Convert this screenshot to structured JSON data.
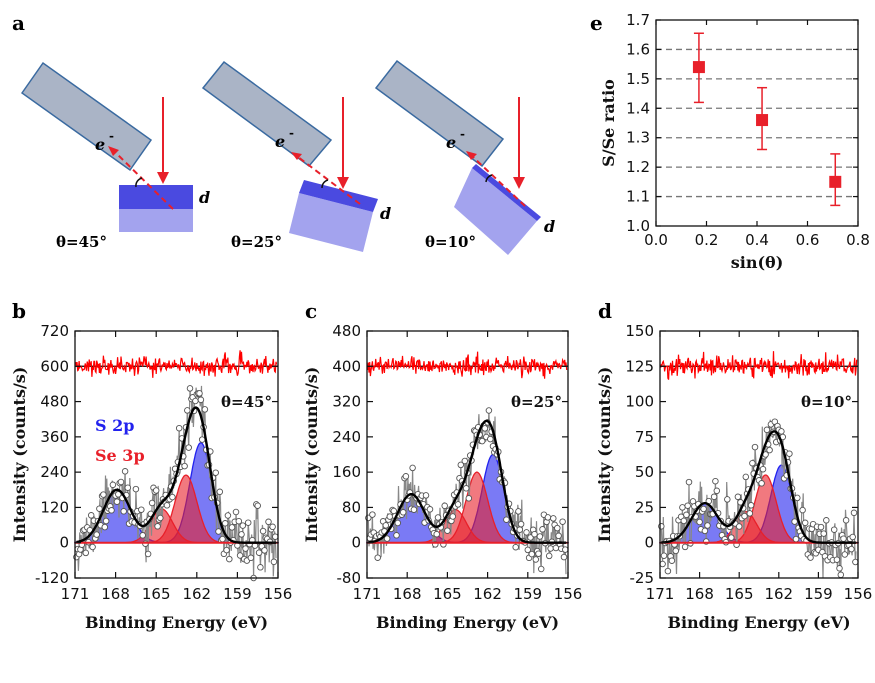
{
  "panels": {
    "a": {
      "letter": "a",
      "geometries": [
        {
          "theta_label": "θ=45°",
          "electron": "e",
          "depth": "d"
        },
        {
          "theta_label": "θ=25°",
          "electron": "e",
          "depth": "d"
        },
        {
          "theta_label": "θ=10°",
          "electron": "e",
          "depth": "d"
        }
      ]
    },
    "b": {
      "letter": "b"
    },
    "c": {
      "letter": "c"
    },
    "d": {
      "letter": "d"
    },
    "e": {
      "letter": "e"
    }
  },
  "colors": {
    "s2p": "#2222ee",
    "se3p": "#e8202a",
    "envelope": "#000000",
    "data": "#888888",
    "residual": "#ff0000",
    "slab_top": "#4a4ae0",
    "slab_bottom": "#a3a3ee",
    "detector": "#aab4c6"
  },
  "chart_data": [
    {
      "type": "scatter",
      "panel": "e",
      "xlabel": "sin(θ)",
      "ylabel": "S/Se ratio",
      "xlim": [
        0.0,
        0.8
      ],
      "ylim": [
        1.0,
        1.7
      ],
      "xticks": [
        0.0,
        0.2,
        0.4,
        0.6,
        0.8
      ],
      "yticks": [
        1.0,
        1.1,
        1.2,
        1.3,
        1.4,
        1.5,
        1.6,
        1.7
      ],
      "grid": "horizontal dashed",
      "points": [
        {
          "x": 0.17,
          "y": 1.54,
          "err_lo": 1.42,
          "err_hi": 1.655
        },
        {
          "x": 0.42,
          "y": 1.36,
          "err_lo": 1.26,
          "err_hi": 1.47
        },
        {
          "x": 0.71,
          "y": 1.15,
          "err_lo": 1.07,
          "err_hi": 1.245
        }
      ]
    },
    {
      "type": "line",
      "panel": "b",
      "theta_label": "θ=45°",
      "legend": [
        "S 2p",
        "Se 3p"
      ],
      "xlabel": "Binding Energy (eV)",
      "ylabel": "Intensity (counts/s)",
      "xlim": [
        171,
        156
      ],
      "ylim": [
        -120,
        720
      ],
      "xticks": [
        171,
        168,
        165,
        162,
        159,
        156
      ],
      "yticks": [
        -120,
        0,
        120,
        240,
        360,
        480,
        600,
        720
      ],
      "residual_offset": 600,
      "peaks": {
        "S 2p": [
          {
            "center": 161.7,
            "height": 340,
            "fwhm": 1.9
          },
          {
            "center": 167.9,
            "height": 180,
            "fwhm": 2.4
          }
        ],
        "Se 3p": [
          {
            "center": 162.8,
            "height": 230,
            "fwhm": 1.9
          },
          {
            "center": 164.6,
            "height": 115,
            "fwhm": 1.9
          }
        ]
      },
      "envelope_peak": 460,
      "noise": 45
    },
    {
      "type": "line",
      "panel": "c",
      "theta_label": "θ=25°",
      "xlabel": "Binding Energy (eV)",
      "ylabel": "Intensity (counts/s)",
      "xlim": [
        171,
        156
      ],
      "ylim": [
        -80,
        480
      ],
      "xticks": [
        171,
        168,
        165,
        162,
        159,
        156
      ],
      "yticks": [
        -80,
        0,
        80,
        160,
        240,
        320,
        400,
        480
      ],
      "residual_offset": 400,
      "peaks": {
        "S 2p": [
          {
            "center": 161.6,
            "height": 200,
            "fwhm": 1.9
          },
          {
            "center": 167.7,
            "height": 110,
            "fwhm": 2.4
          }
        ],
        "Se 3p": [
          {
            "center": 162.8,
            "height": 160,
            "fwhm": 1.9
          },
          {
            "center": 164.4,
            "height": 75,
            "fwhm": 1.9
          }
        ]
      },
      "envelope_peak": 305,
      "noise": 28
    },
    {
      "type": "line",
      "panel": "d",
      "theta_label": "θ=10°",
      "xlabel": "Binding Energy (eV)",
      "ylabel": "Intensity (counts/s)",
      "xlim": [
        171,
        156
      ],
      "ylim": [
        -25,
        150
      ],
      "xticks": [
        171,
        168,
        165,
        162,
        159,
        156
      ],
      "yticks": [
        -25,
        0,
        25,
        50,
        75,
        100,
        125,
        150
      ],
      "residual_offset": 125,
      "peaks": {
        "S 2p": [
          {
            "center": 161.8,
            "height": 55,
            "fwhm": 1.9
          },
          {
            "center": 167.6,
            "height": 28,
            "fwhm": 2.4
          }
        ],
        "Se 3p": [
          {
            "center": 163.0,
            "height": 48,
            "fwhm": 1.9
          },
          {
            "center": 164.5,
            "height": 22,
            "fwhm": 1.9
          }
        ]
      },
      "envelope_peak": 88,
      "noise": 10
    }
  ]
}
